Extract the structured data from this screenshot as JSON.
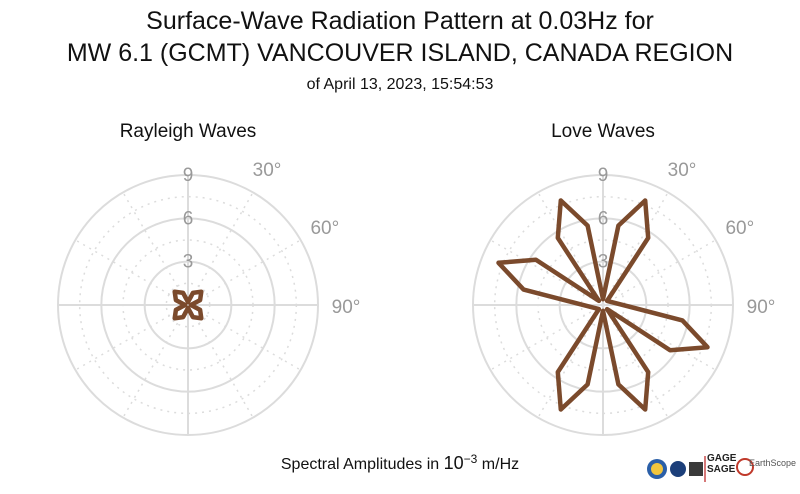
{
  "title_line1": "Surface-Wave Radiation Pattern at 0.03Hz for",
  "title_line2": "MW 6.1 (GCMT) VANCOUVER ISLAND, CANADA REGION",
  "subtitle": "of April 13, 2023, 15:54:53",
  "footer": {
    "prefix": "Spectral Amplitudes in ",
    "base": "10",
    "exponent": "−3",
    "unit": " m/Hz"
  },
  "logos": {
    "gage": "GAGE",
    "sage": "SAGE",
    "earthscope": "EarthScope"
  },
  "colors": {
    "pattern": "#7b4a2c",
    "grid": "#dcdcdc",
    "label": "#999999"
  },
  "chart_data": [
    {
      "type": "line",
      "projection": "polar",
      "title": "Rayleigh Waves",
      "angle_unit": "degrees",
      "angle_ticks": [
        "30°",
        "60°",
        "90°"
      ],
      "radial_ticks": [
        3,
        6,
        9
      ],
      "rlim": [
        0,
        9
      ],
      "series": [
        {
          "values": [
            {
              "theta": 0,
              "r": 0.2
            },
            {
              "theta": 22,
              "r": 0.9
            },
            {
              "theta": 45,
              "r": 1.3
            },
            {
              "theta": 68,
              "r": 0.9
            },
            {
              "theta": 90,
              "r": 0.2
            },
            {
              "theta": 112,
              "r": 0.9
            },
            {
              "theta": 135,
              "r": 1.3
            },
            {
              "theta": 158,
              "r": 0.9
            },
            {
              "theta": 180,
              "r": 0.2
            },
            {
              "theta": 202,
              "r": 0.9
            },
            {
              "theta": 225,
              "r": 1.3
            },
            {
              "theta": 248,
              "r": 0.9
            },
            {
              "theta": 270,
              "r": 0.2
            },
            {
              "theta": 292,
              "r": 0.9
            },
            {
              "theta": 315,
              "r": 1.3
            },
            {
              "theta": 338,
              "r": 0.9
            },
            {
              "theta": 360,
              "r": 0.2
            }
          ]
        }
      ]
    },
    {
      "type": "line",
      "projection": "polar",
      "title": "Love Waves",
      "angle_unit": "degrees",
      "angle_ticks": [
        "30°",
        "60°",
        "90°"
      ],
      "radial_ticks": [
        3,
        6,
        9
      ],
      "rlim": [
        0,
        9
      ],
      "series": [
        {
          "values": [
            {
              "theta": 0,
              "r": 0.4
            },
            {
              "theta": 11,
              "r": 5.6
            },
            {
              "theta": 22,
              "r": 7.8
            },
            {
              "theta": 34,
              "r": 5.6
            },
            {
              "theta": 45,
              "r": 0.4
            },
            {
              "theta": 101,
              "r": 5.6
            },
            {
              "theta": 112,
              "r": 7.8
            },
            {
              "theta": 124,
              "r": 5.6
            },
            {
              "theta": 135,
              "r": 0.4
            },
            {
              "theta": 146,
              "r": 5.6
            },
            {
              "theta": 158,
              "r": 7.8
            },
            {
              "theta": 169,
              "r": 5.6
            },
            {
              "theta": 180,
              "r": 0.4
            },
            {
              "theta": 191,
              "r": 5.6
            },
            {
              "theta": 202,
              "r": 7.8
            },
            {
              "theta": 214,
              "r": 5.6
            },
            {
              "theta": 225,
              "r": 0.4
            },
            {
              "theta": 281,
              "r": 5.6
            },
            {
              "theta": 292,
              "r": 7.8
            },
            {
              "theta": 304,
              "r": 5.6
            },
            {
              "theta": 315,
              "r": 0.4
            },
            {
              "theta": 326,
              "r": 5.6
            },
            {
              "theta": 338,
              "r": 7.8
            },
            {
              "theta": 349,
              "r": 5.6
            },
            {
              "theta": 360,
              "r": 0.4
            }
          ]
        }
      ]
    }
  ]
}
